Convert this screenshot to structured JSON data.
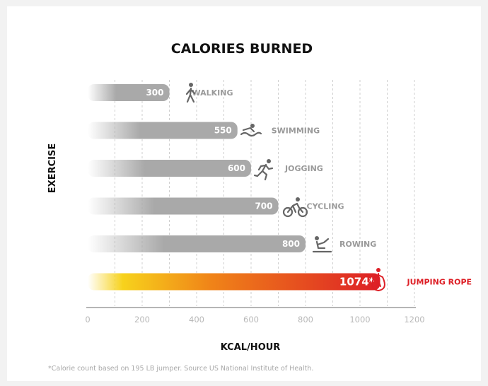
{
  "chart_data": {
    "type": "bar",
    "orientation": "horizontal",
    "title": "CALORIES BURNED",
    "xlabel": "KCAL/HOUR",
    "ylabel": "EXERCISE",
    "xlim": [
      0,
      1200
    ],
    "xticks": [
      "0",
      "200",
      "400",
      "600",
      "800",
      "1000",
      "1200"
    ],
    "grid": true,
    "categories": [
      "WALKING",
      "SWIMMING",
      "JOGGING",
      "CYCLING",
      "ROWING",
      "JUMPING ROPE"
    ],
    "values": [
      300,
      550,
      600,
      700,
      800,
      1074
    ],
    "value_labels": [
      "300",
      "550",
      "600",
      "700",
      "800",
      "1074*"
    ],
    "icons": [
      "walking-icon",
      "swimming-icon",
      "jogging-icon",
      "cycling-icon",
      "rowing-icon",
      "jumping-rope-icon"
    ],
    "highlight": "JUMPING ROPE",
    "colors": {
      "bar": "#a9a9a9",
      "highlight_start": "#f7d21c",
      "highlight_mid": "#f08418",
      "highlight_end": "#dd1f26",
      "highlight_label": "#dd1f26"
    },
    "footnote": "*Calorie count based on 195 LB jumper. Source US National Institute of Health."
  }
}
